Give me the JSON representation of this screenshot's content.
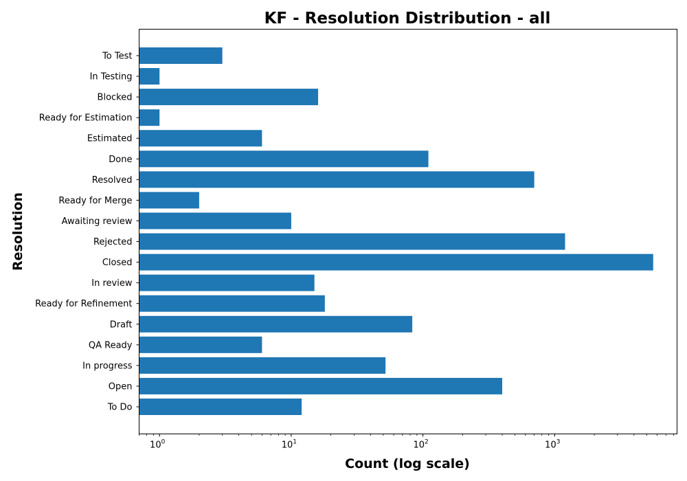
{
  "chart_data": {
    "type": "bar",
    "orientation": "horizontal",
    "title": "KF - Resolution Distribution - all",
    "xlabel": "Count (log scale)",
    "ylabel": "Resolution",
    "x_scale": "log",
    "xlim": [
      0.7,
      8500
    ],
    "x_ticks": [
      {
        "value": 1,
        "base": "10",
        "exp": "0"
      },
      {
        "value": 10,
        "base": "10",
        "exp": "1"
      },
      {
        "value": 100,
        "base": "10",
        "exp": "2"
      },
      {
        "value": 1000,
        "base": "10",
        "exp": "3"
      }
    ],
    "grid": false,
    "legend": false,
    "bar_color": "#1f77b4",
    "categories": [
      "To Do",
      "Open",
      "In progress",
      "QA Ready",
      "Draft",
      "Ready for Refinement",
      "In review",
      "Closed",
      "Rejected",
      "Awaiting review",
      "Ready for Merge",
      "Resolved",
      "Done",
      "Estimated",
      "Ready for Estimation",
      "Blocked",
      "In Testing",
      "To Test"
    ],
    "values": [
      12,
      400,
      52,
      6,
      83,
      18,
      15,
      5600,
      1200,
      10,
      2,
      700,
      110,
      6,
      1,
      16,
      1,
      3
    ]
  }
}
